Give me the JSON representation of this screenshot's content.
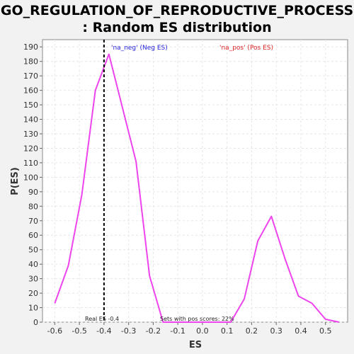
{
  "chart_data": {
    "type": "line",
    "title_line1": "GO_REGULATION_OF_REPRODUCTIVE_PROCESS",
    "title_line2": ": Random ES distribution",
    "xlabel": "ES",
    "ylabel": "P(ES)",
    "xlim": [
      -0.65,
      0.59
    ],
    "ylim": [
      0,
      195
    ],
    "x_ticks": [
      "-0.6",
      "-0.5",
      "-0.4",
      "-0.3",
      "-0.2",
      "-0.1",
      "0.0",
      "0.1",
      "0.2",
      "0.3",
      "0.4",
      "0.5"
    ],
    "x_tick_values": [
      -0.6,
      -0.5,
      -0.4,
      -0.3,
      -0.2,
      -0.1,
      0.0,
      0.1,
      0.2,
      0.3,
      0.4,
      0.5
    ],
    "y_ticks": [
      "0",
      "10",
      "20",
      "30",
      "40",
      "50",
      "60",
      "70",
      "80",
      "90",
      "100",
      "110",
      "120",
      "130",
      "140",
      "150",
      "160",
      "170",
      "180",
      "190"
    ],
    "y_tick_values": [
      0,
      10,
      20,
      30,
      40,
      50,
      60,
      70,
      80,
      90,
      100,
      110,
      120,
      130,
      140,
      150,
      160,
      170,
      180,
      190
    ],
    "grid": true,
    "series": [
      {
        "color": "#ee44ee",
        "x": [
          -0.6,
          -0.545,
          -0.49,
          -0.435,
          -0.38,
          -0.325,
          -0.27,
          -0.215,
          -0.16,
          -0.105,
          -0.05,
          0.005,
          0.06,
          0.115,
          0.17,
          0.225,
          0.28,
          0.335,
          0.39,
          0.445,
          0.5,
          0.555
        ],
        "y": [
          13,
          39,
          88,
          160,
          185,
          148,
          111,
          32,
          0,
          0,
          0,
          0,
          0,
          0,
          16,
          56,
          73,
          44,
          18,
          13,
          2,
          0
        ]
      }
    ],
    "real_es": -0.4,
    "annotations": {
      "neg_label": "'na_neg' (Neg ES)",
      "neg_color": "#2222dd",
      "pos_label": "'na_pos' (Pos ES)",
      "pos_color": "#dd2222",
      "real_es_label": "Real ES -0.4",
      "sets_pos_label": "Sets with pos scores: 22%"
    }
  }
}
